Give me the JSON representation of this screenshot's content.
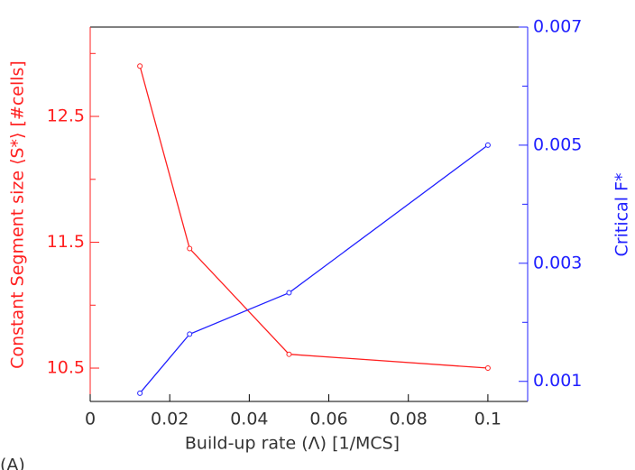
{
  "chart_data": {
    "type": "line",
    "xlabel": "Build-up rate (Λ) [1/MCS]",
    "ylabel": "Constant Segment size ⟨S*⟩ [#cells]",
    "y2label": "Critical F*",
    "panel_label": "(A)",
    "xlim": [
      0,
      0.11
    ],
    "xticks": [
      0,
      0.02,
      0.04,
      0.06,
      0.08,
      0.1
    ],
    "ylim": [
      10.235,
      13.21
    ],
    "yticks": [
      10.5,
      11.5,
      12.5
    ],
    "yminorticks": [
      11,
      12,
      13
    ],
    "y2lim": [
      0.00066,
      0.007
    ],
    "y2ticks": [
      0.001,
      0.003,
      0.005,
      0.007
    ],
    "y2minorticks": [
      0.002,
      0.004,
      0.006
    ],
    "series": [
      {
        "color": "#ff2020",
        "x": [
          0.0125,
          0.025,
          0.05,
          0.1
        ],
        "values": [
          12.9,
          11.45,
          10.61,
          10.5
        ]
      },
      {
        "color": "#2020ff",
        "axis": "y2",
        "x": [
          0.0125,
          0.025,
          0.05,
          0.1
        ],
        "values": [
          0.0008,
          0.0018,
          0.0025,
          0.005
        ]
      }
    ]
  }
}
